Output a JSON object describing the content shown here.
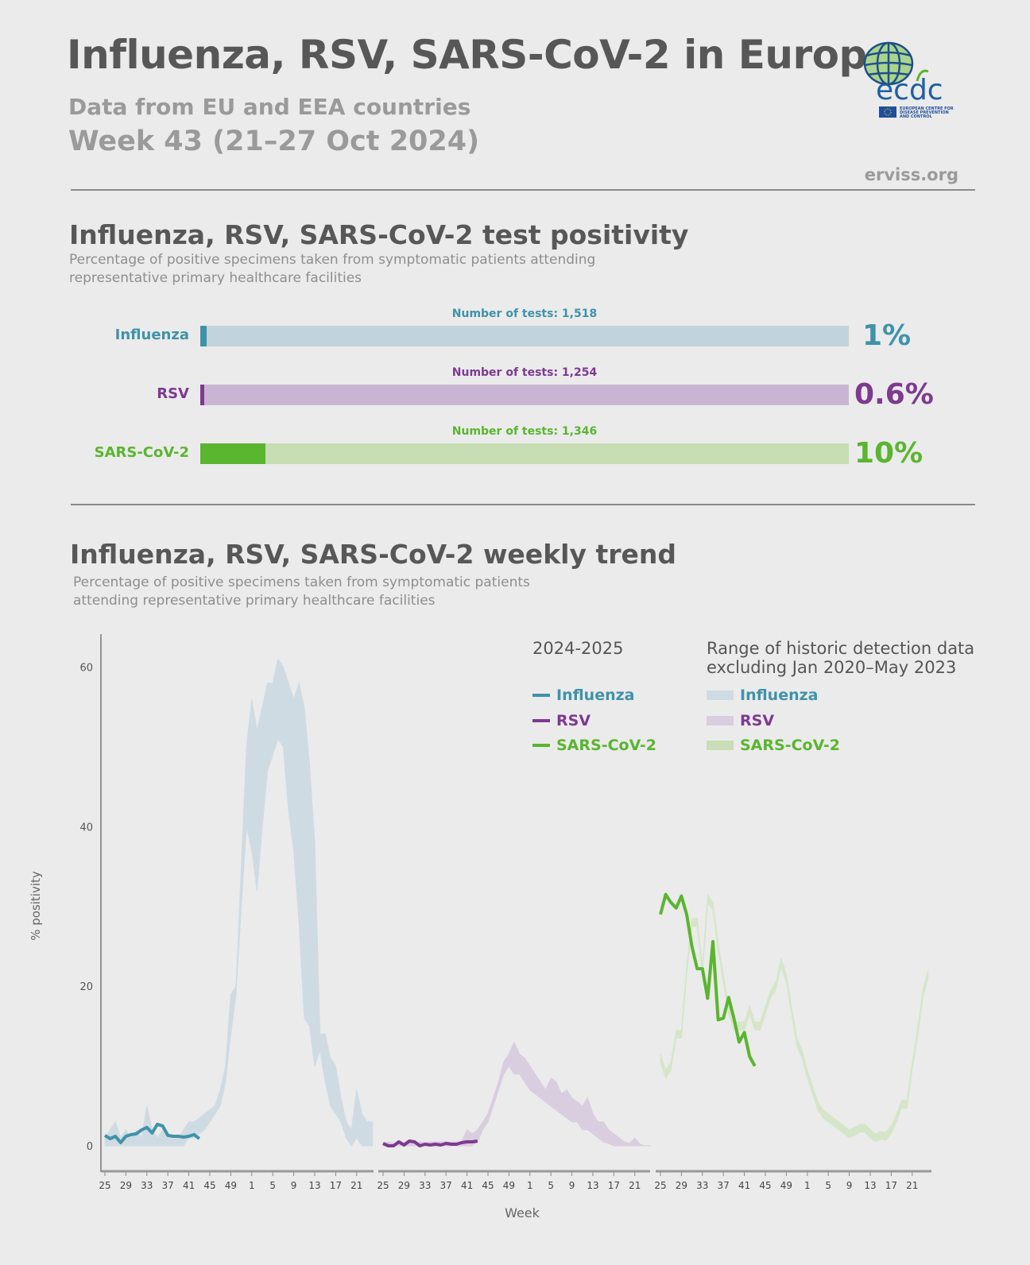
{
  "header": {
    "title": "Influenza, RSV, SARS-CoV-2 in Europe",
    "subtitle": "Data from EU and EEA countries",
    "week": "Week 43 (21–27 Oct 2024)",
    "site": "erviss.org",
    "logo_text": "ecdc",
    "logo_caption": "EUROPEAN CENTRE FOR DISEASE PREVENTION AND CONTROL"
  },
  "positivity": {
    "title": "Influenza, RSV, SARS-CoV-2 test positivity",
    "description_line1": "Percentage of positive specimens taken from symptomatic patients attending",
    "description_line2": "representative primary healthcare facilities",
    "bars": [
      {
        "label": "Influenza",
        "tests": "Number of tests: 1,518",
        "value_text": "1%",
        "value": 1,
        "color": "#3f93a8",
        "track_color": "#c2d3dc"
      },
      {
        "label": "RSV",
        "tests": "Number of tests: 1,254",
        "value_text": "0.6%",
        "value": 0.6,
        "color": "#7d3a90",
        "track_color": "#c9b5d3"
      },
      {
        "label": "SARS-CoV-2",
        "tests": "Number of tests: 1,346",
        "value_text": "10%",
        "value": 10,
        "color": "#5ab52f",
        "track_color": "#c7ddb3"
      }
    ]
  },
  "trend": {
    "title": "Influenza, RSV, SARS-CoV-2 weekly trend",
    "description_line1": "Percentage of positive specimens taken from symptomatic patients",
    "description_line2": "attending representative primary healthcare facilities",
    "legend": {
      "season_heading": "2024-2025",
      "range_heading_line1": "Range of historic detection data",
      "range_heading_line2": "excluding Jan 2020–May 2023",
      "items": [
        "Influenza",
        "RSV",
        "SARS-CoV-2"
      ]
    }
  },
  "chart_data": {
    "type": "line",
    "xlabel": "Week",
    "ylabel": "% positivity",
    "ylim": [
      0,
      60
    ],
    "y_ticks": [
      "0",
      "20",
      "40",
      "60"
    ],
    "x_ticks": [
      "25",
      "29",
      "33",
      "37",
      "41",
      "45",
      "49",
      "1",
      "5",
      "9",
      "13",
      "17",
      "21"
    ],
    "weeks": [
      25,
      26,
      27,
      28,
      29,
      30,
      31,
      32,
      33,
      34,
      35,
      36,
      37,
      38,
      39,
      40,
      41,
      42,
      43,
      44,
      45,
      46,
      47,
      48,
      49,
      50,
      51,
      52,
      1,
      2,
      3,
      4,
      5,
      6,
      7,
      8,
      9,
      10,
      11,
      12,
      13,
      14,
      15,
      16,
      17,
      18,
      19,
      20,
      21,
      22,
      23,
      24
    ],
    "panels": [
      {
        "name": "Influenza",
        "color": "#3f93a8",
        "band_color": "#cfdbe3",
        "current_2024_2025": [
          1.3,
          0.9,
          1.2,
          0.4,
          1.2,
          1.4,
          1.5,
          2.0,
          2.3,
          1.6,
          2.7,
          2.5,
          1.3,
          1.2,
          1.2,
          1.1,
          1.2,
          1.4,
          0.9
        ],
        "historic_min": [
          0,
          0,
          0,
          0,
          0,
          0,
          0,
          0,
          0,
          0,
          0,
          0,
          0,
          0,
          0,
          0,
          1,
          1,
          1.5,
          2,
          3,
          4,
          5,
          8,
          14,
          19,
          30,
          40,
          37,
          32,
          40,
          47,
          49,
          51,
          50,
          42,
          37,
          28,
          16,
          15,
          10,
          12,
          8,
          5,
          4,
          3,
          1,
          0,
          1,
          0,
          0,
          0
        ],
        "historic_max": [
          1,
          2,
          3,
          1,
          2,
          1,
          2,
          1,
          5,
          2,
          1,
          2,
          1,
          1,
          1,
          2,
          3,
          3,
          3.5,
          4,
          4.5,
          5,
          7,
          10,
          19,
          20,
          35,
          50,
          56,
          52,
          55,
          58,
          58,
          61,
          60,
          58,
          56,
          58,
          55,
          48,
          38,
          14,
          14,
          11,
          10,
          6,
          3,
          2,
          7,
          4,
          3,
          3
        ]
      },
      {
        "name": "RSV",
        "color": "#7d3a90",
        "band_color": "#d9cde0",
        "current_2024_2025": [
          0.3,
          0,
          0,
          0.5,
          0.1,
          0.6,
          0.5,
          0,
          0.2,
          0.1,
          0.2,
          0.1,
          0.3,
          0.2,
          0.2,
          0.4,
          0.5,
          0.5,
          0.6
        ],
        "historic_min": [
          0,
          0,
          0,
          0,
          0,
          0,
          0,
          0,
          0,
          0,
          0,
          0,
          0,
          0,
          0,
          0,
          0,
          0,
          0.5,
          2,
          3,
          5,
          7,
          9,
          10,
          9,
          9,
          8,
          7,
          6.5,
          6,
          5.5,
          5,
          4.5,
          4,
          3.5,
          3,
          3,
          2,
          2,
          1.5,
          1,
          0.5,
          0.3,
          0,
          0,
          0,
          0,
          0,
          0,
          0,
          0
        ],
        "historic_max": [
          0.3,
          0.5,
          0.3,
          0.5,
          0.4,
          0.5,
          0.3,
          0.5,
          0.4,
          0.5,
          0.5,
          0.5,
          0.5,
          0.5,
          0.5,
          0.5,
          2,
          1.5,
          2,
          3,
          4,
          6,
          8,
          10.5,
          11.5,
          13,
          11.5,
          11,
          10,
          9,
          8,
          7,
          8.5,
          8,
          6.5,
          7,
          6,
          5.5,
          5,
          6,
          4,
          3,
          3,
          2,
          1.5,
          1,
          0.5,
          0.3,
          1,
          0.2,
          0,
          0
        ]
      },
      {
        "name": "SARS-CoV-2",
        "color": "#5ab52f",
        "band_color": "#d6e5c8",
        "current_2024_2025": [
          29,
          31.5,
          30.5,
          29.8,
          31.3,
          29,
          25,
          22.2,
          22.2,
          18.5,
          25.6,
          15.8,
          16,
          18.6,
          16,
          13,
          14.2,
          11.2,
          10
        ],
        "historic_min": [
          10.5,
          8.5,
          9.5,
          13.5,
          13.5,
          21.5,
          27.5,
          27.5,
          21.5,
          30.5,
          29.5,
          24.5,
          20.5,
          16.5,
          14.5,
          14.5,
          14.5,
          16.5,
          14.5,
          14.5,
          16.5,
          18.5,
          19.5,
          22.5,
          20.5,
          16.5,
          12.5,
          11,
          8.5,
          6.5,
          4.5,
          3.5,
          3,
          2.5,
          2,
          1.5,
          1,
          1.3,
          1.7,
          1.7,
          1,
          0.5,
          0.8,
          0.7,
          1.5,
          3,
          4.7,
          4.7,
          9.5,
          13.5,
          18.5,
          21
        ],
        "historic_max": [
          11.5,
          9.5,
          10.5,
          14.5,
          14.5,
          22.5,
          28.5,
          28.5,
          22.5,
          31.5,
          30.5,
          25.5,
          21.5,
          17.5,
          15.5,
          15.5,
          15.5,
          17.5,
          15.5,
          15.5,
          17.5,
          19.5,
          20.5,
          23.5,
          21.5,
          17.5,
          13.5,
          12,
          9.5,
          7.5,
          5.5,
          4.5,
          4,
          3.5,
          3,
          2.5,
          2,
          2.3,
          2.7,
          2.7,
          2,
          1.5,
          1.8,
          1.7,
          2.5,
          4,
          5.7,
          5.7,
          10.5,
          14.5,
          19.5,
          22
        ]
      }
    ]
  }
}
